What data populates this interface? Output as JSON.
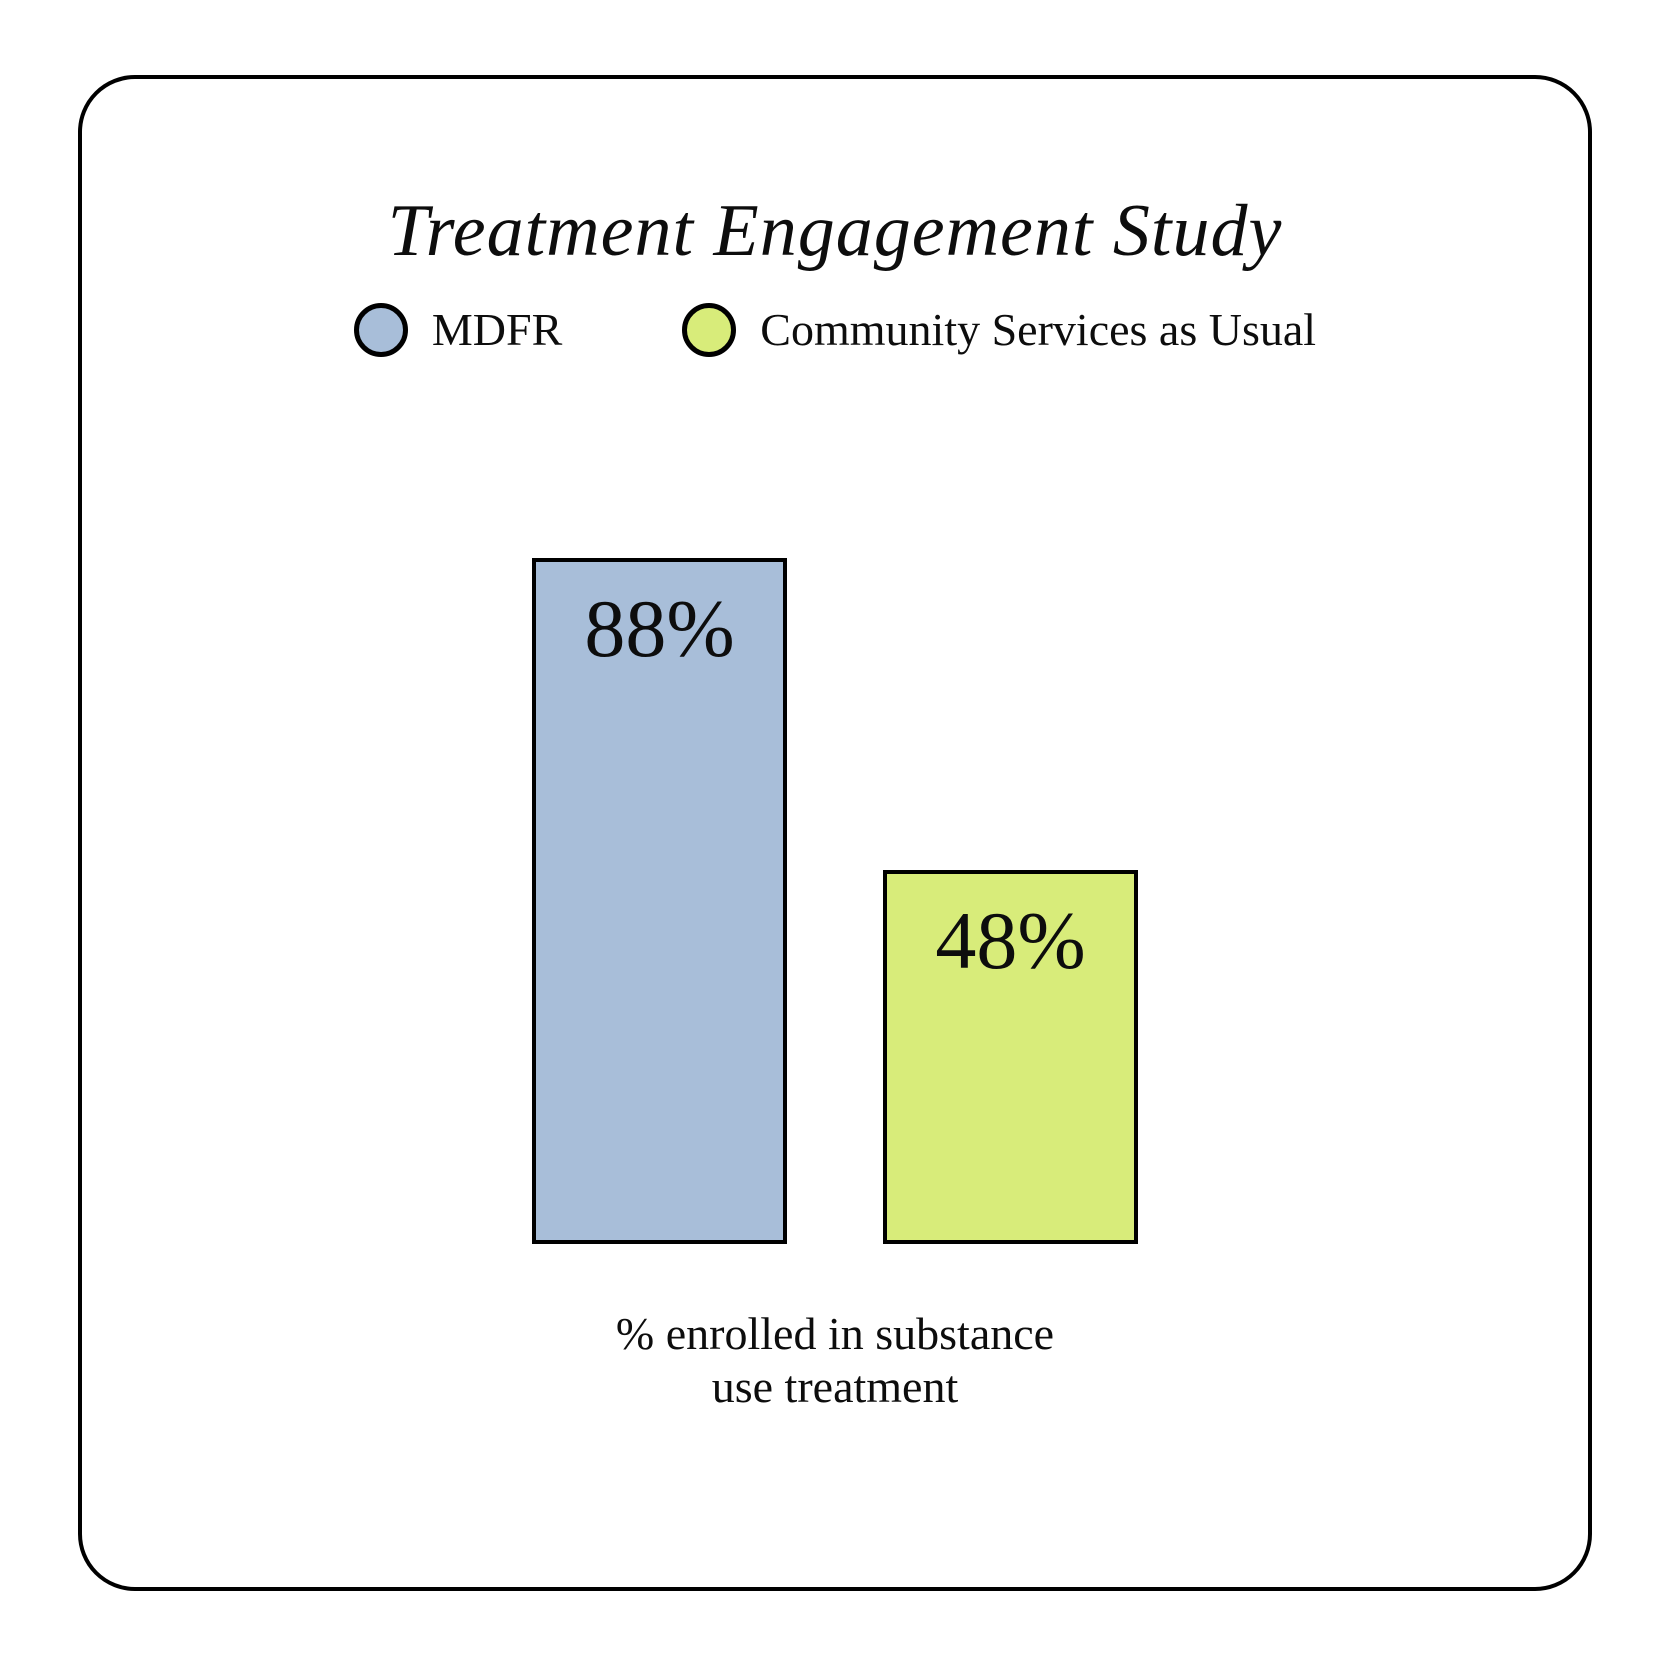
{
  "title": "Treatment Engagement Study",
  "legend": {
    "items": [
      {
        "label": "MDFR",
        "color": "#a8bed9"
      },
      {
        "label": "Community Services as Usual",
        "color": "#d8ec7a"
      }
    ]
  },
  "chart_data": {
    "type": "bar",
    "title": "Treatment Engagement Study",
    "categories": [
      "MDFR",
      "Community Services as Usual"
    ],
    "values": [
      88,
      48
    ],
    "value_labels": [
      "88%",
      "48%"
    ],
    "colors": [
      "#a8bed9",
      "#d8ec7a"
    ],
    "outline_color": "#000000",
    "background_color": "#ffffff",
    "xlabel": "% enrolled in substance use treatment",
    "xlabel_lines": [
      "% enrolled in substance",
      "use treatment"
    ],
    "ylim": [
      0,
      100
    ],
    "grid": false,
    "legend_position": "top",
    "axes_shown": false
  }
}
